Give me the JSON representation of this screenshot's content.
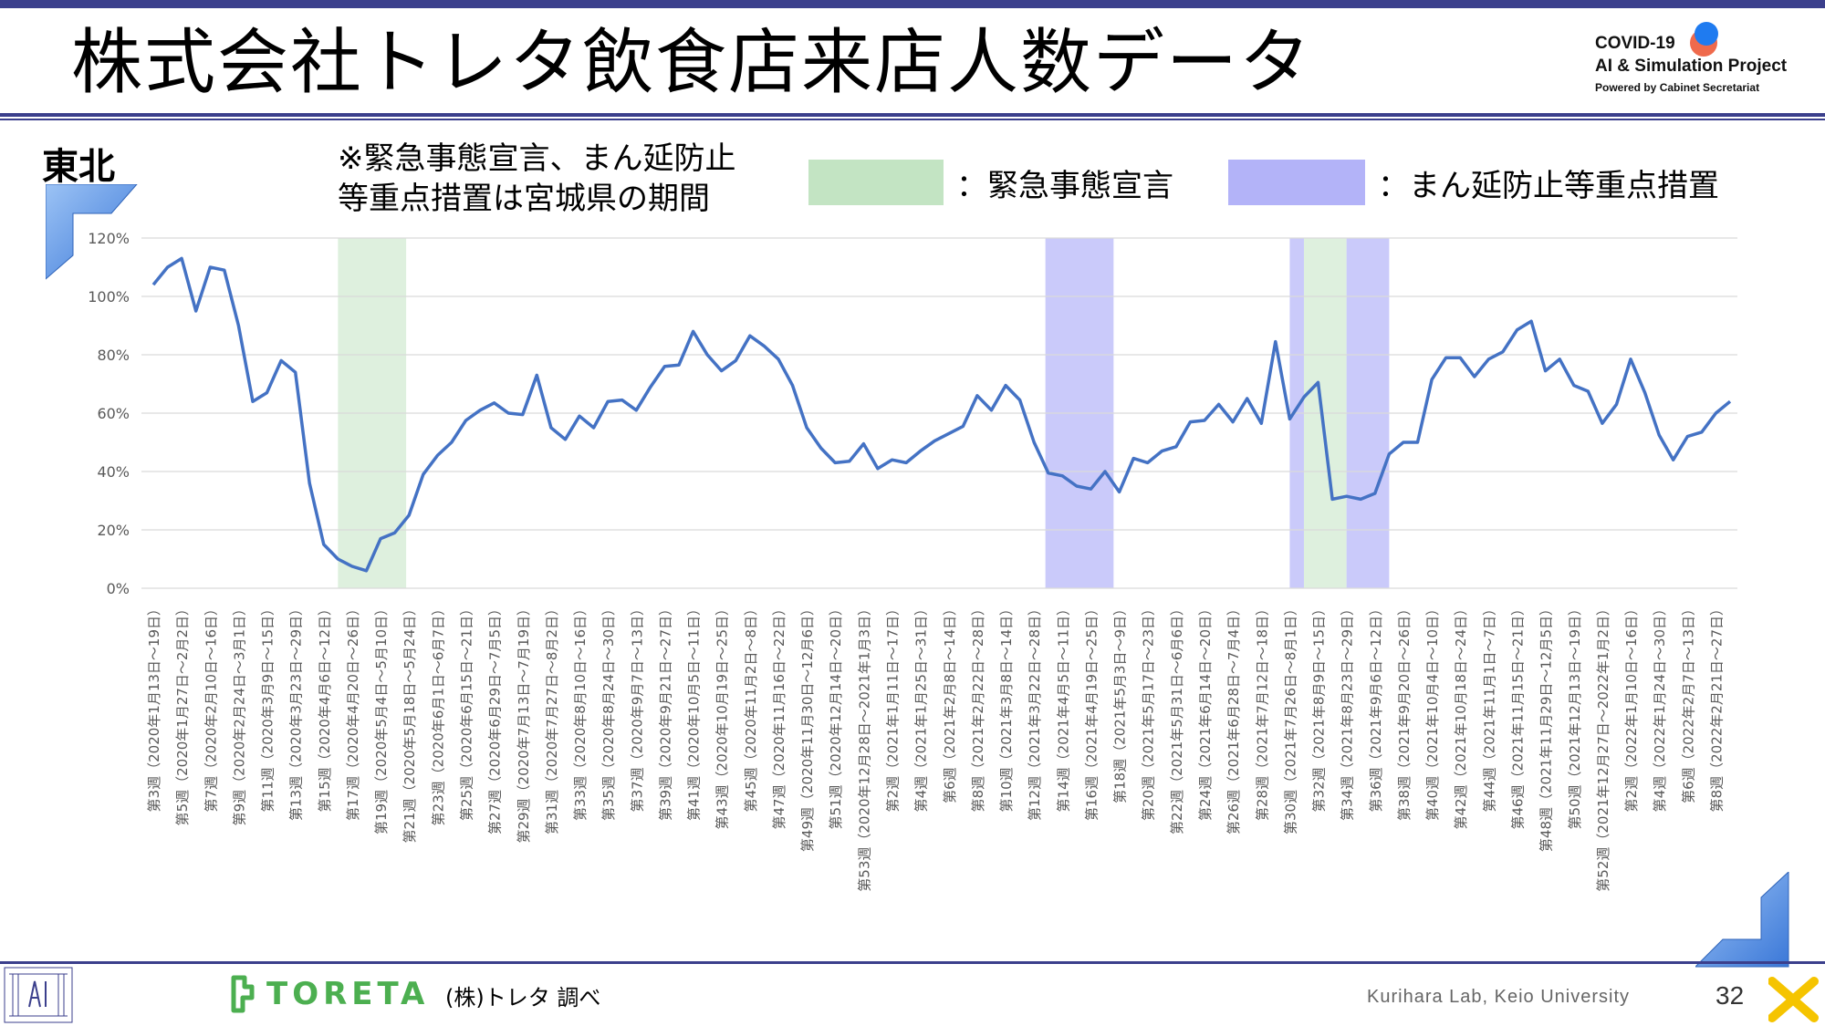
{
  "header": {
    "title": "株式会社トレタ飲食店来店人数データ",
    "logo_line1": "COVID-19",
    "logo_line2": "AI & Simulation Project",
    "logo_line3": "Powered by Cabinet Secretariat"
  },
  "region": "東北",
  "note_line1": "※緊急事態宣言、まん延防止",
  "note_line2": "等重点措置は宮城県の期間",
  "legend": {
    "emergency_label": "：緊急事態宣言",
    "emergency_color": "#c3e4c3",
    "priority_label": "：まん延防止等重点措置",
    "priority_color": "#b3b3f8"
  },
  "footer": {
    "brand": "TORETA",
    "source": "(株)トレタ 調べ",
    "lab": "Kurihara Lab, Keio University",
    "page_number": "32"
  },
  "chart_data": {
    "type": "line",
    "series": [
      {
        "color": "#4472c4",
        "values": [
          104,
          110,
          113,
          95,
          110,
          109,
          90,
          64,
          67,
          78,
          74,
          36,
          15,
          10,
          7.5,
          6,
          17,
          19,
          25,
          39,
          45.5,
          50,
          57.5,
          61,
          63.5,
          60,
          59.5,
          73,
          55,
          51,
          59,
          55,
          64,
          64.5,
          61,
          69,
          76,
          76.5,
          88,
          80,
          74.5,
          78,
          86.5,
          83,
          78.5,
          69.5,
          55,
          48,
          43,
          43.5,
          49.5,
          41,
          44,
          43,
          47,
          50.5,
          53,
          55.5,
          66,
          61,
          69.5,
          64.5,
          50,
          39.5,
          38.5,
          35,
          34,
          40,
          33,
          44.5,
          43,
          47,
          48.5,
          57,
          57.5,
          63,
          57,
          65,
          56.5,
          84.5,
          58,
          65.5,
          70.5,
          30.5,
          31.5,
          30.5,
          32.5,
          46,
          50,
          50,
          71.5,
          79,
          79,
          72.5,
          78.5,
          81,
          88.5,
          91.5,
          74.5,
          78.5,
          69.5,
          67.5,
          56.5,
          63,
          78.5,
          67,
          52.5,
          44,
          52,
          53.5,
          60,
          64
        ]
      }
    ],
    "ylim": [
      0,
      120
    ],
    "yticks": [
      "0%",
      "20%",
      "40%",
      "60%",
      "80%",
      "100%",
      "120%"
    ],
    "xtick_labels": [
      "第3週（2020年1月13日～19日）",
      "第5週（2020年1月27日～2月2日）",
      "第7週（2020年2月10日～16日）",
      "第9週（2020年2月24日～3月1日）",
      "第11週（2020年3月9日～15日）",
      "第13週（2020年3月23日～29日）",
      "第15週（2020年4月6日～12日）",
      "第17週（2020年4月20日～26日）",
      "第19週（2020年5月4日～5月10日）",
      "第21週（2020年5月18日～5月24日）",
      "第23週（2020年6月1日～6月7日）",
      "第25週（2020年6月15日～21日）",
      "第27週（2020年6月29日～7月5日）",
      "第29週（2020年7月13日～7月19日）",
      "第31週（2020年7月27日～8月2日）",
      "第33週（2020年8月10日～16日）",
      "第35週（2020年8月24日～30日）",
      "第37週（2020年9月7日～13日）",
      "第39週（2020年9月21日～27日）",
      "第41週（2020年10月5日～11日）",
      "第43週（2020年10月19日～25日）",
      "第45週（2020年11月2日～8日）",
      "第47週（2020年11月16日～22日）",
      "第49週（2020年11月30日～12月6日）",
      "第51週（2020年12月14日～20日）",
      "第53週（2020年12月28日～2021年1月3日）",
      "第2週（2021年1月11日～17日）",
      "第4週（2021年1月25日～31日）",
      "第6週（2021年2月8日～14日）",
      "第8週（2021年2月22日～28日）",
      "第10週（2021年3月8日～14日）",
      "第12週（2021年3月22日～28日）",
      "第14週（2021年4月5日～11日）",
      "第16週（2021年4月19日～25日）",
      "第18週（2021年5月3日～9日）",
      "第20週（2021年5月17日～23日）",
      "第22週（2021年5月31日～6月6日）",
      "第24週（2021年6月14日～20日）",
      "第26週（2021年6月28日～7月4日）",
      "第28週（2021年7月12日～18日）",
      "第30週（2021年7月26日～8月1日）",
      "第32週（2021年8月9日～15日）",
      "第34週（2021年8月23日～29日）",
      "第36週（2021年9月6日～12日）",
      "第38週（2021年9月20日～26日）",
      "第40週（2021年10月4日～10日）",
      "第42週（2021年10月18日～24日）",
      "第44週（2021年11月1日～7日）",
      "第46週（2021年11月15日～21日）",
      "第48週（2021年11月29日～12月5日）",
      "第50週（2021年12月13日～19日）",
      "第52週（2021年12月27日～2022年1月2日）",
      "第2週（2022年1月10日～16日）",
      "第4週（2022年1月24日～30日）",
      "第6週（2022年2月7日～13日）",
      "第8週（2022年2月21日～27日）"
    ],
    "bands": [
      {
        "kind": "emergency",
        "from_index": 13,
        "to_index": 17.8
      },
      {
        "kind": "priority",
        "from_index": 62.8,
        "to_index": 67.6
      },
      {
        "kind": "priority",
        "from_index": 80,
        "to_index": 81
      },
      {
        "kind": "emergency",
        "from_index": 81,
        "to_index": 84
      },
      {
        "kind": "priority",
        "from_index": 84,
        "to_index": 87
      }
    ],
    "grid": true
  }
}
